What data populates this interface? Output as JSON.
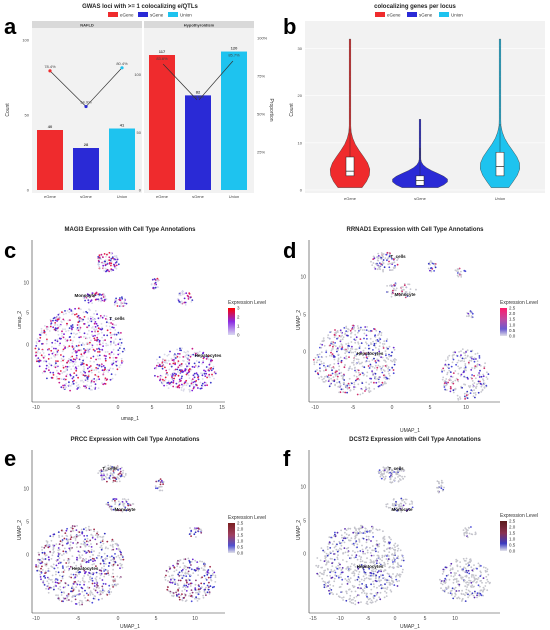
{
  "panels": {
    "a": "a",
    "b": "b",
    "c": "c",
    "d": "d",
    "e": "e",
    "f": "f"
  },
  "chart_data": [
    {
      "id": "a",
      "type": "bar",
      "title": "GWAS loci with >= 1 colocalizing e/QTLs",
      "legend": [
        "eGene",
        "sGene",
        "Union"
      ],
      "legend_position": "top",
      "colors": [
        "#ef2b2d",
        "#2a2ad6",
        "#1ec3ef"
      ],
      "ylabel": "Count",
      "ylabel_right": "Proportion",
      "facets": [
        {
          "name": "NAFLD",
          "categories": [
            "eGene",
            "sGene",
            "Union"
          ],
          "values": [
            40,
            28,
            41
          ],
          "proportions": [
            0.784,
            0.549,
            0.804
          ],
          "proportion_labels": [
            "78.4%",
            "54.9%",
            "80.4%"
          ],
          "value_labels": [
            "40",
            "28",
            "41"
          ]
        },
        {
          "name": "Hypothyroidism",
          "categories": [
            "eGene",
            "sGene",
            "Union"
          ],
          "values": [
            117,
            82,
            120
          ],
          "proportions": [
            0.836,
            0.586,
            0.857
          ],
          "proportion_labels": [
            "83.6%",
            "58.6%",
            "85.7%"
          ],
          "value_labels": [
            "117",
            "82",
            "120"
          ]
        }
      ],
      "ylim_left_nafld": [
        0,
        100
      ],
      "ylim_left_hypo": [
        0,
        130
      ],
      "yticks_nafld": [
        "0",
        "50",
        "100"
      ],
      "yticks_hypo": [
        "0",
        "50",
        "100"
      ],
      "yticks_right": [
        "25%",
        "50%",
        "75%",
        "100%"
      ]
    },
    {
      "id": "b",
      "type": "violin",
      "title": "colocalizing genes per locus",
      "legend": [
        "eGene",
        "sGene",
        "Union"
      ],
      "legend_position": "top",
      "ylabel": "Count",
      "categories": [
        "eGene",
        "sGene",
        "Union"
      ],
      "ylim": [
        0,
        35
      ],
      "yticks": [
        "0",
        "10",
        "20",
        "30"
      ],
      "medians": [
        4,
        2,
        5
      ],
      "q1": [
        3,
        1,
        3
      ],
      "q3": [
        7,
        3,
        8
      ],
      "max": [
        32,
        15,
        32
      ]
    },
    {
      "id": "c",
      "type": "scatter",
      "title": "MAGI3 Expression with Cell Type Annotations",
      "xlabel": "umap_1",
      "ylabel": "umap_2",
      "xticks": [
        "-10",
        "-5",
        "0",
        "5",
        "10",
        "15"
      ],
      "yticks": [
        "0",
        "5",
        "10"
      ],
      "legend_title": "Expression Level",
      "legend_ticks": [
        "3",
        "2",
        "1",
        "0"
      ],
      "clusters": [
        "Monocyte",
        "T_cells",
        "Hepatocytes"
      ]
    },
    {
      "id": "d",
      "type": "scatter",
      "title": "RRNAD1 Expression with Cell Type Annotations",
      "xlabel": "UMAP_1",
      "ylabel": "UMAP_2",
      "xticks": [
        "-10",
        "-5",
        "0",
        "5",
        "10"
      ],
      "yticks": [
        "0",
        "5",
        "10"
      ],
      "legend_title": "Expression Level",
      "legend_ticks": [
        "2.5",
        "2.0",
        "1.5",
        "1.0",
        "0.5",
        "0.0"
      ],
      "clusters": [
        "T_cells",
        "Monocyte",
        "Hepatocytes"
      ]
    },
    {
      "id": "e",
      "type": "scatter",
      "title": "PRCC Expression with Cell Type Annotations",
      "xlabel": "UMAP_1",
      "ylabel": "UMAP_2",
      "xticks": [
        "-10",
        "-5",
        "0",
        "5",
        "10"
      ],
      "yticks": [
        "0",
        "5",
        "10"
      ],
      "legend_title": "Expression Level",
      "legend_ticks": [
        "2.5",
        "2.0",
        "1.5",
        "1.0",
        "0.5",
        "0.0"
      ],
      "clusters": [
        "T_cells",
        "Monocyte",
        "Hepatocytes"
      ]
    },
    {
      "id": "f",
      "type": "scatter",
      "title": "DCST2 Expression with Cell Type Annotations",
      "xlabel": "UMAP_1",
      "ylabel": "UMAP_2",
      "xticks": [
        "-15",
        "-10",
        "-5",
        "0",
        "5",
        "10"
      ],
      "yticks": [
        "0",
        "5",
        "10"
      ],
      "legend_title": "Expression Level",
      "legend_ticks": [
        "2.5",
        "2.0",
        "1.5",
        "1.0",
        "0.5",
        "0.0"
      ],
      "clusters": [
        "T_cells",
        "Monocyte",
        "Hepatocytes"
      ]
    }
  ]
}
